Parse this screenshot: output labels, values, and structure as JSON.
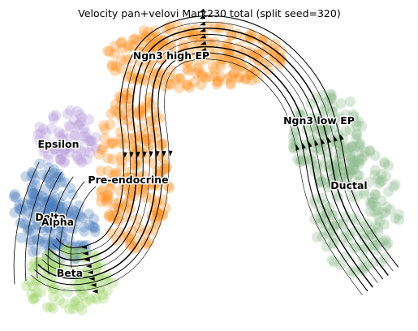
{
  "chart_data": {
    "type": "scatter",
    "title": "Velocity pan+velovi Mark230 total (split seed=320)",
    "xlabel": "",
    "ylabel": "",
    "grid": false,
    "axes_visible": false,
    "overlay": "velocity streamlines",
    "clusters": [
      {
        "name": "Ductal",
        "color": "#8fbc8f"
      },
      {
        "name": "Ngn3 low EP",
        "color": "#8fbc8f"
      },
      {
        "name": "Ngn3 high EP",
        "color": "#ff8c1a"
      },
      {
        "name": "Pre-endocrine",
        "color": "#ff8c1a"
      },
      {
        "name": "Epsilon",
        "color": "#b39ddb"
      },
      {
        "name": "Delta",
        "color": "#4f7fbf"
      },
      {
        "name": "Alpha",
        "color": "#4f7fbf"
      },
      {
        "name": "Beta",
        "color": "#9ed36a"
      }
    ]
  }
}
